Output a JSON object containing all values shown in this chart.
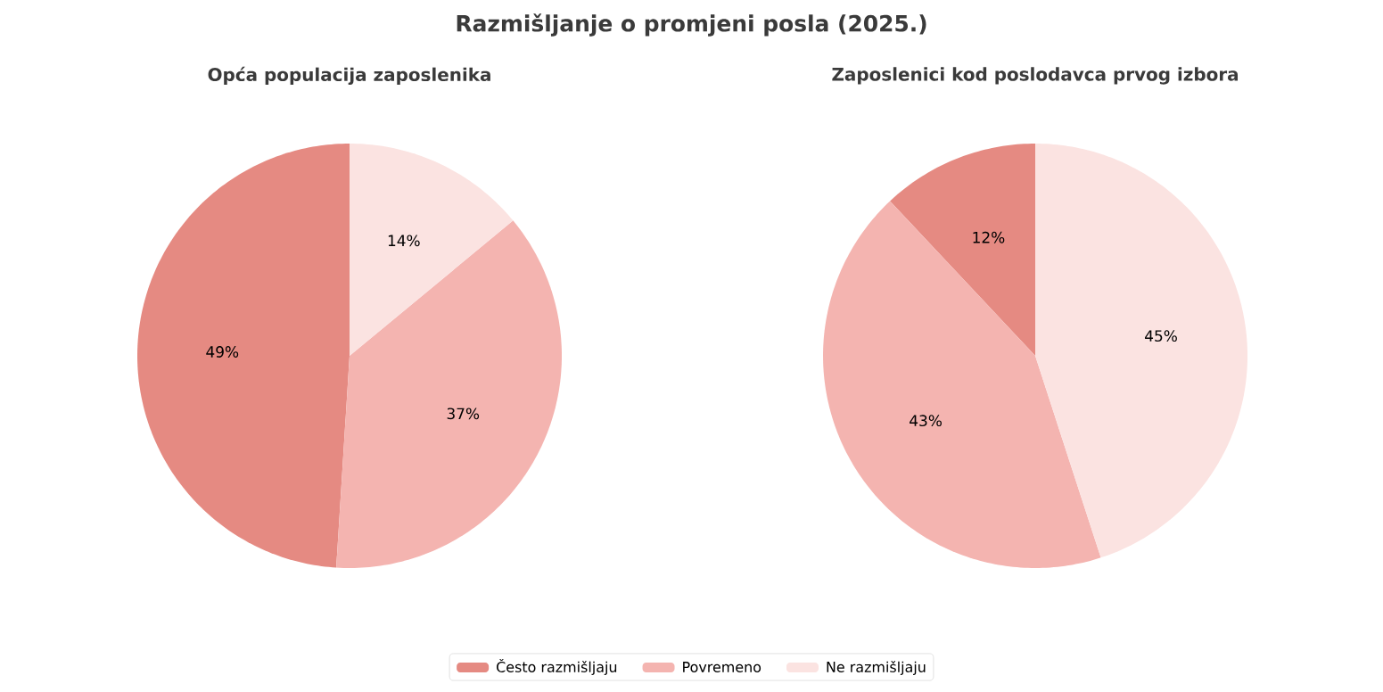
{
  "chart_data": [
    {
      "type": "pie",
      "title": "Razmišljanje o promjeni posla (2025.)",
      "subtitle": "Opća populacija zaposlenika",
      "categories": [
        "Često razmišljaju",
        "Povremeno",
        "Ne razmišljaju"
      ],
      "values": [
        49,
        37,
        14
      ],
      "value_labels": [
        "49%",
        "37%",
        "14%"
      ],
      "colors": [
        "#e58a82",
        "#f4b4b0",
        "#fbe3e1"
      ],
      "legend": "bottom"
    },
    {
      "type": "pie",
      "subtitle": "Zaposlenici kod poslodavca prvog izbora",
      "categories": [
        null,
        null,
        null
      ],
      "values": [
        12,
        43,
        45
      ],
      "value_labels": [
        "12%",
        "43%",
        "45%"
      ],
      "colors": [
        "#e58a82",
        "#f4b4b0",
        "#fbe3e1"
      ]
    }
  ]
}
